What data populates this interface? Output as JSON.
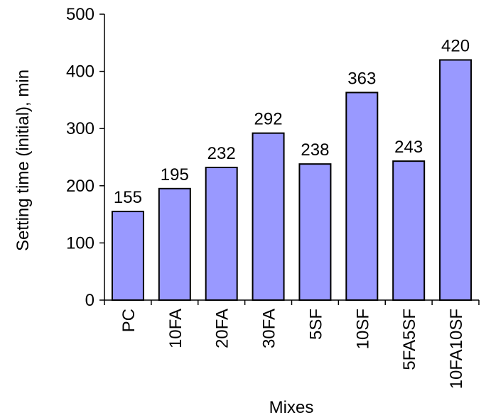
{
  "chart_data": {
    "type": "bar",
    "xlabel": "Mixes",
    "ylabel": "Setting time (initial), min",
    "categories": [
      "PC",
      "10FA",
      "20FA",
      "30FA",
      "5SF",
      "10SF",
      "5FA5SF",
      "10FA10SF"
    ],
    "values": [
      155,
      195,
      232,
      292,
      238,
      363,
      243,
      420
    ],
    "ylim": [
      0,
      500
    ],
    "yticks": [
      0,
      100,
      200,
      300,
      400,
      500
    ],
    "grid": false,
    "legend": "none",
    "bar_color": "#9999ff",
    "bar_edge_color": "#000000"
  }
}
